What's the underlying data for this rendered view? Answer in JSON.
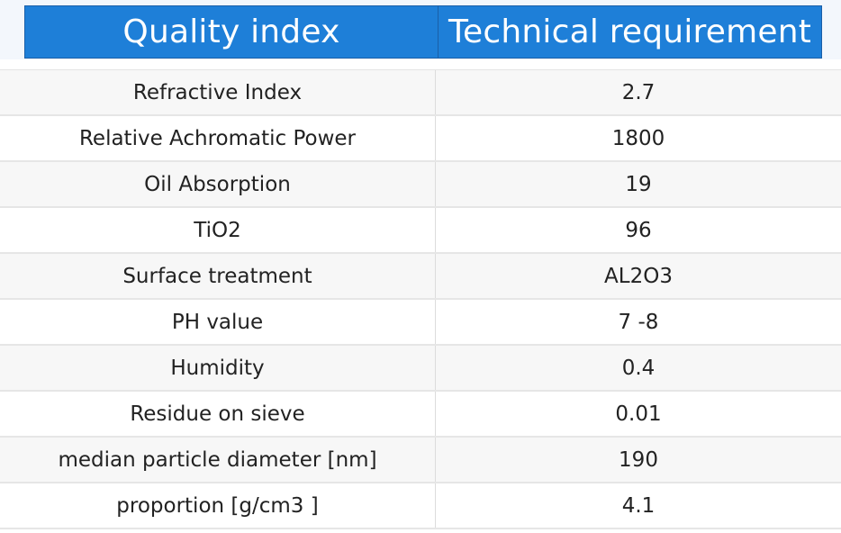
{
  "header": {
    "col1": "Quality index",
    "col2": "Technical requirement"
  },
  "rows": [
    {
      "index": "Refractive Index",
      "requirement": "2.7"
    },
    {
      "index": "Relative Achromatic Power",
      "requirement": "1800"
    },
    {
      "index": "Oil Absorption",
      "requirement": "19"
    },
    {
      "index": "TiO2",
      "requirement": "96"
    },
    {
      "index": "Surface treatment",
      "requirement": "AL2O3"
    },
    {
      "index": "PH value",
      "requirement": "7 -8"
    },
    {
      "index": "Humidity",
      "requirement": "0.4"
    },
    {
      "index": "Residue on sieve",
      "requirement": "0.01"
    },
    {
      "index": "median particle diameter [nm]",
      "requirement": "190"
    },
    {
      "index": "proportion [g/cm3 ]",
      "requirement": "4.1"
    }
  ],
  "colors": {
    "header_bg": "#1e7fd8",
    "header_text": "#ffffff",
    "row_alt_bg": "#f7f7f7"
  }
}
